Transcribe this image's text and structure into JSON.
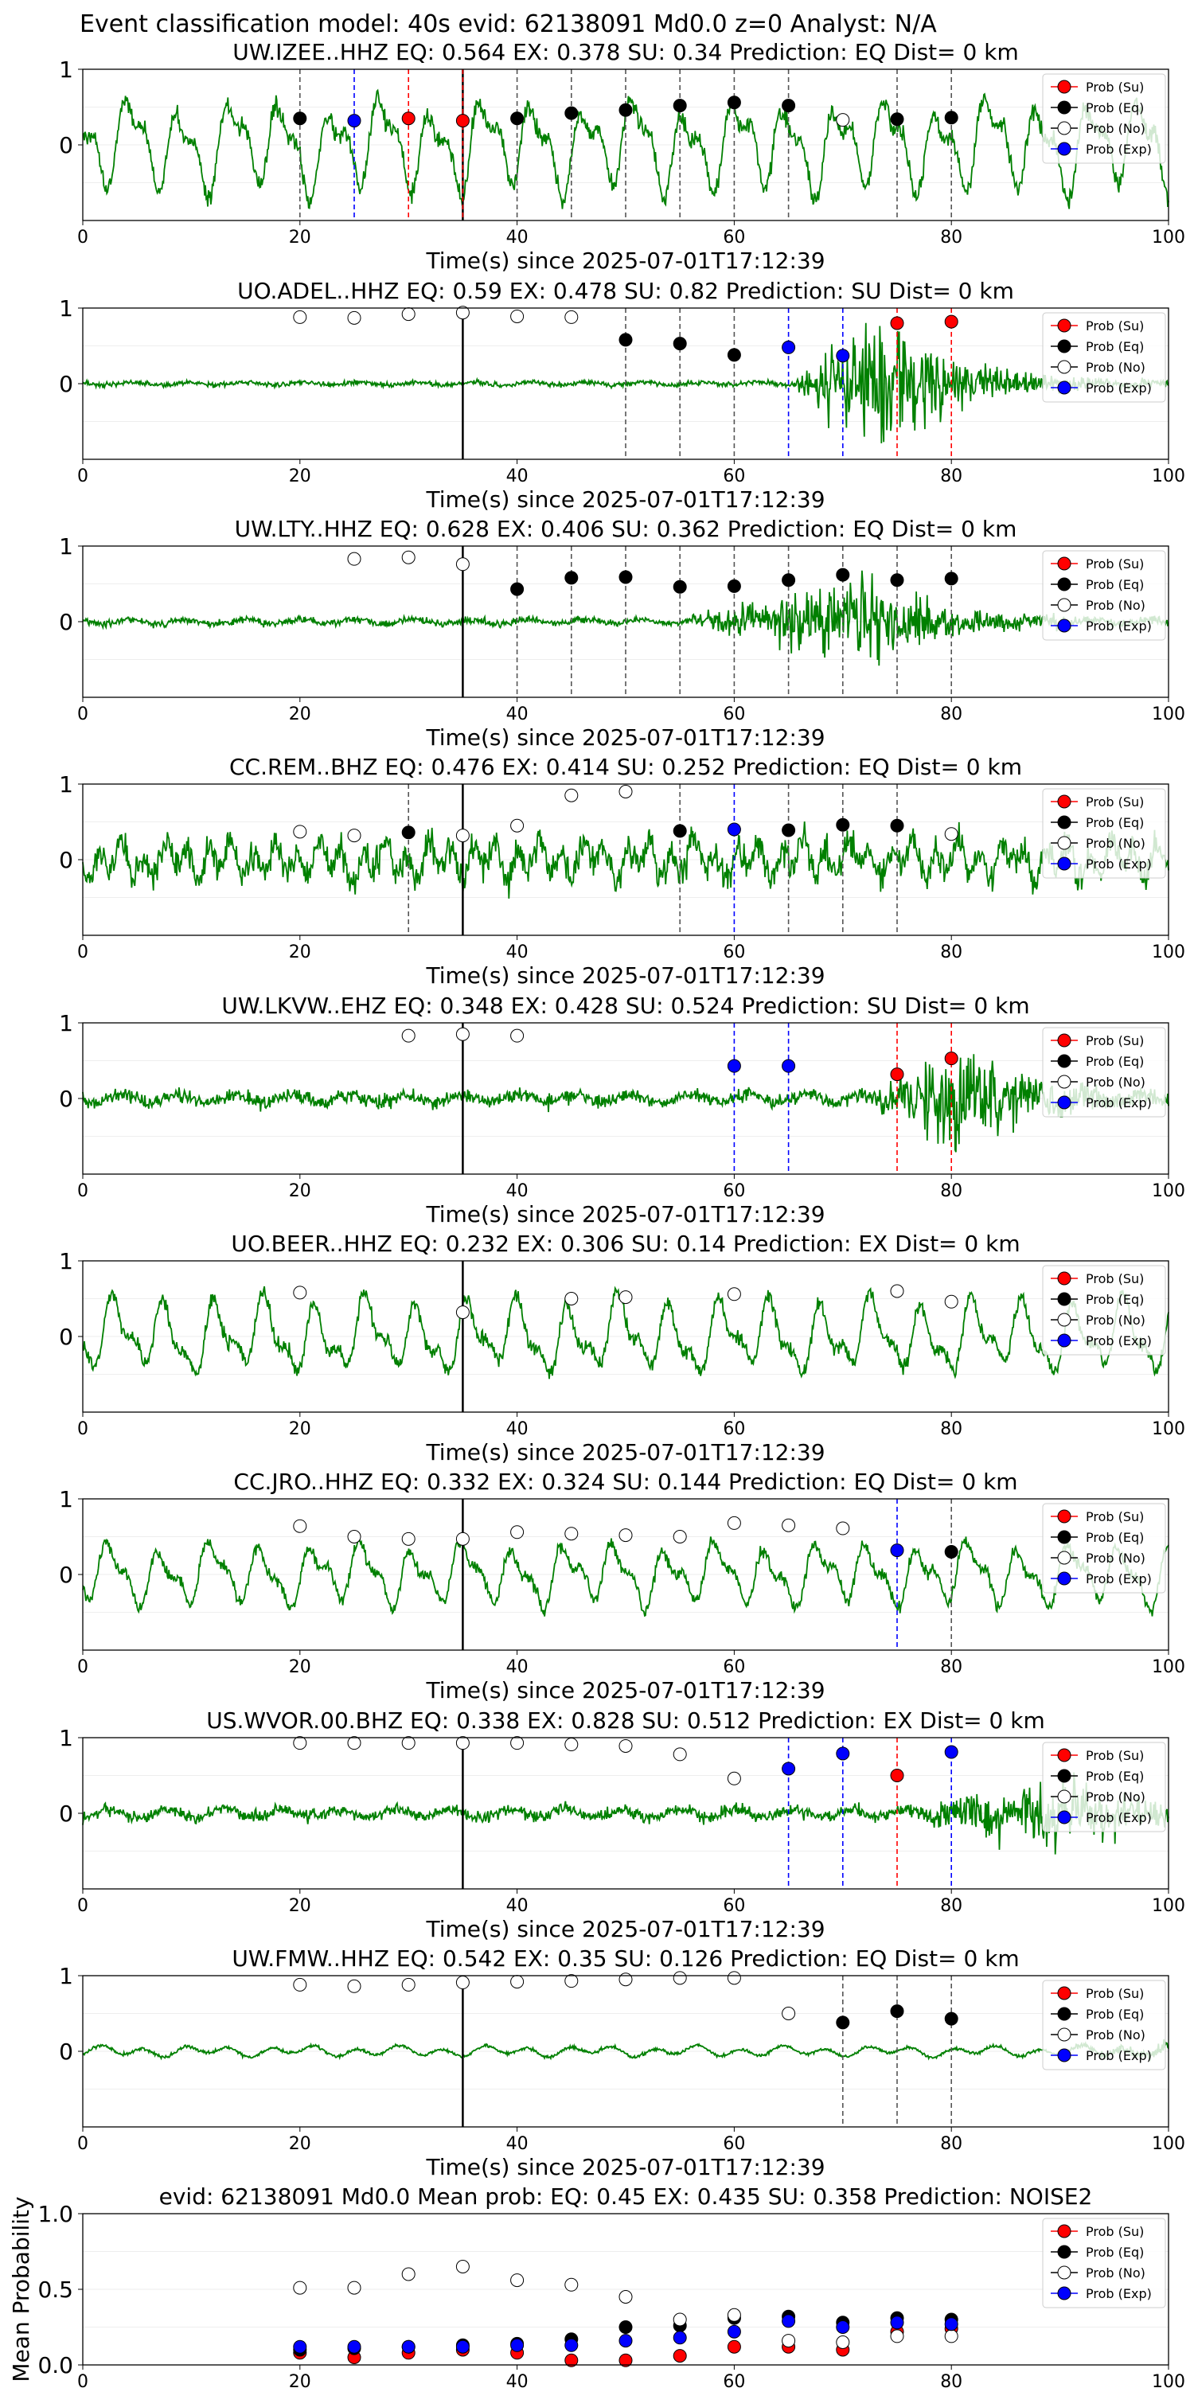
{
  "figure_title": "Event classification model: 40s evid: 62138091 Md0.0 z=0 Analyst: N/A",
  "x_tick_labels": [
    "0",
    "20",
    "40",
    "60",
    "80",
    "100"
  ],
  "y_tick_labels": [
    "0",
    "1"
  ],
  "mean_y_tick_labels": [
    "0.0",
    "0.5",
    "1.0"
  ],
  "xlabel": "Time(s) since 2025-07-01T17:12:39",
  "mean_ylabel": "Mean Probability",
  "legend": [
    {
      "label": "Prob (Su)",
      "color": "#ff0000"
    },
    {
      "label": "Prob (Eq)",
      "color": "#000000"
    },
    {
      "label": "Prob (No)",
      "color": "#ffffff"
    },
    {
      "label": "Prob (Exp)",
      "color": "#0000ff"
    }
  ],
  "colors": {
    "waveform": "#008000",
    "su": "#ff0000",
    "eq": "#000000",
    "no": "#ffffff",
    "exp": "#0000ff"
  },
  "chart_data": [
    {
      "type": "scatter",
      "title": "UW.IZEE..HHZ   EQ: 0.564  EX: 0.378  SU: 0.34   Prediction: EQ    Dist= 0 km",
      "xlim": [
        0,
        100
      ],
      "ylim": [
        -1,
        1
      ],
      "waveform_style": "long-period",
      "waveform_amplitude": 0.75,
      "noise_onset_s": null,
      "event_time_s": 35,
      "windows": [
        {
          "t": 20,
          "cls": "eq",
          "p": 0.35
        },
        {
          "t": 25,
          "cls": "exp",
          "p": 0.32
        },
        {
          "t": 30,
          "cls": "su",
          "p": 0.35
        },
        {
          "t": 35,
          "cls": "su",
          "p": 0.32
        },
        {
          "t": 40,
          "cls": "eq",
          "p": 0.35
        },
        {
          "t": 45,
          "cls": "eq",
          "p": 0.42
        },
        {
          "t": 50,
          "cls": "eq",
          "p": 0.46
        },
        {
          "t": 55,
          "cls": "eq",
          "p": 0.52
        },
        {
          "t": 60,
          "cls": "eq",
          "p": 0.56
        },
        {
          "t": 65,
          "cls": "eq",
          "p": 0.52
        },
        {
          "t": 70,
          "cls": "no",
          "p": 0.33
        },
        {
          "t": 75,
          "cls": "eq",
          "p": 0.34
        },
        {
          "t": 80,
          "cls": "eq",
          "p": 0.36
        }
      ]
    },
    {
      "type": "scatter",
      "title": "UO.ADEL..HHZ   EQ: 0.59  EX: 0.478  SU: 0.82   Prediction: SU    Dist= 0 km",
      "xlim": [
        0,
        100
      ],
      "ylim": [
        -1,
        1
      ],
      "waveform_style": "burst",
      "waveform_amplitude": 0.05,
      "burst_start_s": 65,
      "burst_peak_s": 73,
      "burst_amplitude": 0.85,
      "event_time_s": 35,
      "windows": [
        {
          "t": 20,
          "cls": "no",
          "p": 0.88
        },
        {
          "t": 25,
          "cls": "no",
          "p": 0.87
        },
        {
          "t": 30,
          "cls": "no",
          "p": 0.92
        },
        {
          "t": 35,
          "cls": "no",
          "p": 0.94
        },
        {
          "t": 40,
          "cls": "no",
          "p": 0.89
        },
        {
          "t": 45,
          "cls": "no",
          "p": 0.88
        },
        {
          "t": 50,
          "cls": "eq",
          "p": 0.58
        },
        {
          "t": 55,
          "cls": "eq",
          "p": 0.53
        },
        {
          "t": 60,
          "cls": "eq",
          "p": 0.38
        },
        {
          "t": 65,
          "cls": "exp",
          "p": 0.48
        },
        {
          "t": 70,
          "cls": "exp",
          "p": 0.37
        },
        {
          "t": 75,
          "cls": "su",
          "p": 0.8
        },
        {
          "t": 80,
          "cls": "su",
          "p": 0.82
        }
      ]
    },
    {
      "type": "scatter",
      "title": "UW.LTY..HHZ   EQ: 0.628  EX: 0.406  SU: 0.362   Prediction: EQ    Dist= 0 km",
      "xlim": [
        0,
        100
      ],
      "ylim": [
        -1,
        1
      ],
      "waveform_style": "burst",
      "waveform_amplitude": 0.07,
      "burst_start_s": 55,
      "burst_peak_s": 72,
      "burst_amplitude": 0.55,
      "event_time_s": 35,
      "windows": [
        {
          "t": 25,
          "cls": "no",
          "p": 0.83
        },
        {
          "t": 30,
          "cls": "no",
          "p": 0.85
        },
        {
          "t": 35,
          "cls": "no",
          "p": 0.76
        },
        {
          "t": 40,
          "cls": "eq",
          "p": 0.43
        },
        {
          "t": 45,
          "cls": "eq",
          "p": 0.58
        },
        {
          "t": 50,
          "cls": "eq",
          "p": 0.59
        },
        {
          "t": 55,
          "cls": "eq",
          "p": 0.46
        },
        {
          "t": 60,
          "cls": "eq",
          "p": 0.47
        },
        {
          "t": 65,
          "cls": "eq",
          "p": 0.55
        },
        {
          "t": 70,
          "cls": "eq",
          "p": 0.62
        },
        {
          "t": 75,
          "cls": "eq",
          "p": 0.55
        },
        {
          "t": 80,
          "cls": "eq",
          "p": 0.57
        }
      ]
    },
    {
      "type": "scatter",
      "title": "CC.REM..BHZ   EQ: 0.476  EX: 0.414  SU: 0.252   Prediction: EQ    Dist= 0 km",
      "xlim": [
        0,
        100
      ],
      "ylim": [
        -1,
        1
      ],
      "waveform_style": "noisy",
      "waveform_amplitude": 0.45,
      "event_time_s": 35,
      "windows": [
        {
          "t": 20,
          "cls": "no",
          "p": 0.37
        },
        {
          "t": 25,
          "cls": "no",
          "p": 0.32
        },
        {
          "t": 30,
          "cls": "eq",
          "p": 0.36
        },
        {
          "t": 35,
          "cls": "no",
          "p": 0.32
        },
        {
          "t": 40,
          "cls": "no",
          "p": 0.45
        },
        {
          "t": 45,
          "cls": "no",
          "p": 0.85
        },
        {
          "t": 50,
          "cls": "no",
          "p": 0.9
        },
        {
          "t": 55,
          "cls": "eq",
          "p": 0.38
        },
        {
          "t": 60,
          "cls": "exp",
          "p": 0.4
        },
        {
          "t": 65,
          "cls": "eq",
          "p": 0.39
        },
        {
          "t": 70,
          "cls": "eq",
          "p": 0.46
        },
        {
          "t": 75,
          "cls": "eq",
          "p": 0.45
        },
        {
          "t": 80,
          "cls": "no",
          "p": 0.34
        }
      ]
    },
    {
      "type": "scatter",
      "title": "UW.LKVW..EHZ   EQ: 0.348  EX: 0.428  SU: 0.524   Prediction: SU    Dist= 0 km",
      "xlim": [
        0,
        100
      ],
      "ylim": [
        -1,
        1
      ],
      "waveform_style": "burst",
      "waveform_amplitude": 0.14,
      "burst_start_s": 72,
      "burst_peak_s": 80,
      "burst_amplitude": 0.65,
      "event_time_s": 35,
      "windows": [
        {
          "t": 30,
          "cls": "no",
          "p": 0.83
        },
        {
          "t": 35,
          "cls": "no",
          "p": 0.85
        },
        {
          "t": 40,
          "cls": "no",
          "p": 0.83
        },
        {
          "t": 60,
          "cls": "exp",
          "p": 0.43
        },
        {
          "t": 65,
          "cls": "exp",
          "p": 0.43
        },
        {
          "t": 75,
          "cls": "su",
          "p": 0.32
        },
        {
          "t": 80,
          "cls": "su",
          "p": 0.53
        }
      ]
    },
    {
      "type": "scatter",
      "title": "UO.BEER..HHZ   EQ: 0.232  EX: 0.306  SU: 0.14   Prediction: EX    Dist= 0 km",
      "xlim": [
        0,
        100
      ],
      "ylim": [
        -1,
        1
      ],
      "waveform_style": "long-period",
      "waveform_amplitude": 0.6,
      "event_time_s": 35,
      "windows": [
        {
          "t": 20,
          "cls": "no",
          "p": 0.58
        },
        {
          "t": 35,
          "cls": "no",
          "p": 0.32
        },
        {
          "t": 45,
          "cls": "no",
          "p": 0.5
        },
        {
          "t": 50,
          "cls": "no",
          "p": 0.52
        },
        {
          "t": 60,
          "cls": "no",
          "p": 0.56
        },
        {
          "t": 75,
          "cls": "no",
          "p": 0.6
        },
        {
          "t": 80,
          "cls": "no",
          "p": 0.46
        }
      ]
    },
    {
      "type": "scatter",
      "title": "CC.JRO..HHZ   EQ: 0.332  EX: 0.324  SU: 0.144   Prediction: EQ    Dist= 0 km",
      "xlim": [
        0,
        100
      ],
      "ylim": [
        -1,
        1
      ],
      "waveform_style": "long-period",
      "waveform_amplitude": 0.5,
      "event_time_s": 35,
      "windows": [
        {
          "t": 20,
          "cls": "no",
          "p": 0.64
        },
        {
          "t": 25,
          "cls": "no",
          "p": 0.5
        },
        {
          "t": 30,
          "cls": "no",
          "p": 0.47
        },
        {
          "t": 35,
          "cls": "no",
          "p": 0.47
        },
        {
          "t": 40,
          "cls": "no",
          "p": 0.56
        },
        {
          "t": 45,
          "cls": "no",
          "p": 0.54
        },
        {
          "t": 50,
          "cls": "no",
          "p": 0.52
        },
        {
          "t": 55,
          "cls": "no",
          "p": 0.5
        },
        {
          "t": 60,
          "cls": "no",
          "p": 0.68
        },
        {
          "t": 65,
          "cls": "no",
          "p": 0.65
        },
        {
          "t": 70,
          "cls": "no",
          "p": 0.61
        },
        {
          "t": 75,
          "cls": "exp",
          "p": 0.32
        },
        {
          "t": 80,
          "cls": "eq",
          "p": 0.3
        }
      ]
    },
    {
      "type": "scatter",
      "title": "US.WVOR.00.BHZ   EQ: 0.338  EX: 0.828  SU: 0.512   Prediction: EX    Dist= 0 km",
      "xlim": [
        0,
        100
      ],
      "ylim": [
        -1,
        1
      ],
      "waveform_style": "burst",
      "waveform_amplitude": 0.13,
      "burst_start_s": 74,
      "burst_peak_s": 90,
      "burst_amplitude": 0.45,
      "event_time_s": 35,
      "windows": [
        {
          "t": 20,
          "cls": "no",
          "p": 0.93
        },
        {
          "t": 25,
          "cls": "no",
          "p": 0.93
        },
        {
          "t": 30,
          "cls": "no",
          "p": 0.93
        },
        {
          "t": 35,
          "cls": "no",
          "p": 0.93
        },
        {
          "t": 40,
          "cls": "no",
          "p": 0.93
        },
        {
          "t": 45,
          "cls": "no",
          "p": 0.91
        },
        {
          "t": 50,
          "cls": "no",
          "p": 0.89
        },
        {
          "t": 55,
          "cls": "no",
          "p": 0.78
        },
        {
          "t": 60,
          "cls": "no",
          "p": 0.46
        },
        {
          "t": 65,
          "cls": "exp",
          "p": 0.59
        },
        {
          "t": 70,
          "cls": "exp",
          "p": 0.79
        },
        {
          "t": 75,
          "cls": "su",
          "p": 0.5
        },
        {
          "t": 80,
          "cls": "exp",
          "p": 0.81
        }
      ]
    },
    {
      "type": "scatter",
      "title": "UW.FMW..HHZ   EQ: 0.542  EX: 0.35  SU: 0.126   Prediction: EQ    Dist= 0 km",
      "xlim": [
        0,
        100
      ],
      "ylim": [
        -1,
        1
      ],
      "waveform_style": "quiet",
      "waveform_amplitude": 0.1,
      "event_time_s": 35,
      "windows": [
        {
          "t": 20,
          "cls": "no",
          "p": 0.88
        },
        {
          "t": 25,
          "cls": "no",
          "p": 0.86
        },
        {
          "t": 30,
          "cls": "no",
          "p": 0.88
        },
        {
          "t": 35,
          "cls": "no",
          "p": 0.91
        },
        {
          "t": 40,
          "cls": "no",
          "p": 0.92
        },
        {
          "t": 45,
          "cls": "no",
          "p": 0.93
        },
        {
          "t": 50,
          "cls": "no",
          "p": 0.95
        },
        {
          "t": 55,
          "cls": "no",
          "p": 0.97
        },
        {
          "t": 60,
          "cls": "no",
          "p": 0.97
        },
        {
          "t": 65,
          "cls": "no",
          "p": 0.5
        },
        {
          "t": 70,
          "cls": "eq",
          "p": 0.38
        },
        {
          "t": 75,
          "cls": "eq",
          "p": 0.53
        },
        {
          "t": 80,
          "cls": "eq",
          "p": 0.43
        }
      ]
    },
    {
      "type": "scatter",
      "title": "evid: 62138091  Md0.0   Mean prob:    EQ: 0.45  EX: 0.435  SU: 0.358   Prediction: NOISE2",
      "xlim": [
        0,
        100
      ],
      "ylim": [
        0,
        1
      ],
      "grid": true,
      "x": [
        20,
        25,
        30,
        35,
        40,
        45,
        50,
        55,
        60,
        65,
        70,
        75,
        80
      ],
      "series": [
        {
          "name": "Prob (Su)",
          "cls": "su",
          "values": [
            0.08,
            0.05,
            0.08,
            0.1,
            0.08,
            0.03,
            0.03,
            0.06,
            0.12,
            0.12,
            0.1,
            0.22,
            0.24
          ]
        },
        {
          "name": "Prob (Eq)",
          "cls": "eq",
          "values": [
            0.1,
            0.11,
            0.12,
            0.13,
            0.14,
            0.17,
            0.25,
            0.26,
            0.31,
            0.32,
            0.28,
            0.31,
            0.3
          ]
        },
        {
          "name": "Prob (No)",
          "cls": "no",
          "values": [
            0.51,
            0.51,
            0.6,
            0.65,
            0.56,
            0.53,
            0.45,
            0.3,
            0.33,
            0.16,
            0.15,
            0.19,
            0.19
          ]
        },
        {
          "name": "Prob (Exp)",
          "cls": "exp",
          "values": [
            0.12,
            0.12,
            0.12,
            0.12,
            0.13,
            0.13,
            0.16,
            0.18,
            0.22,
            0.29,
            0.25,
            0.28,
            0.27
          ]
        }
      ]
    }
  ]
}
